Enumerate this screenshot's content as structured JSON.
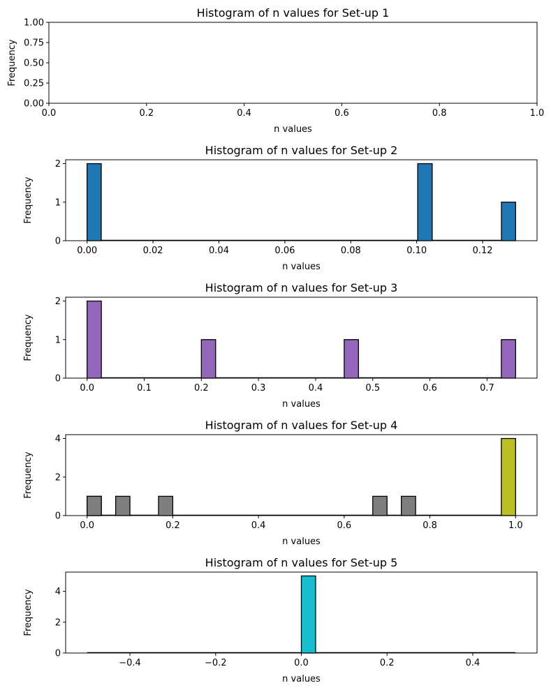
{
  "chart_data": [
    {
      "type": "bar",
      "title": "Histogram of n values for Set-up 1",
      "xlabel": "n values",
      "ylabel": "Frequency",
      "xlim": [
        0,
        1
      ],
      "ylim": [
        0,
        1
      ],
      "xticks": [
        0,
        0.2,
        0.4,
        0.6,
        0.8,
        1.0
      ],
      "xtick_labels": [
        "0.0",
        "0.2",
        "0.4",
        "0.6",
        "0.8",
        "1.0"
      ],
      "yticks": [
        0,
        0.25,
        0.5,
        0.75,
        1.0
      ],
      "ytick_labels": [
        "0.00",
        "0.25",
        "0.50",
        "0.75",
        "1.00"
      ],
      "bars": []
    },
    {
      "type": "bar",
      "title": "Histogram of n values for Set-up 2",
      "xlabel": "n values",
      "ylabel": "Frequency",
      "xlim": [
        -0.0065,
        0.1365
      ],
      "ylim": [
        0,
        2.1
      ],
      "xticks": [
        0,
        0.02,
        0.04,
        0.06,
        0.08,
        0.1,
        0.12
      ],
      "xtick_labels": [
        "0.00",
        "0.02",
        "0.04",
        "0.06",
        "0.08",
        "0.10",
        "0.12"
      ],
      "yticks": [
        0,
        1,
        2
      ],
      "ytick_labels": [
        "0",
        "1",
        "2"
      ],
      "color": "#1f77b4",
      "bars": [
        {
          "x0": 0.0,
          "x1": 0.0043,
          "value": 2
        },
        {
          "x0": 0.1003,
          "x1": 0.1047,
          "value": 2
        },
        {
          "x0": 0.1257,
          "x1": 0.13,
          "value": 1
        }
      ]
    },
    {
      "type": "bar",
      "title": "Histogram of n values for Set-up 3",
      "xlabel": "n values",
      "ylabel": "Frequency",
      "xlim": [
        -0.0375,
        0.7875
      ],
      "ylim": [
        0,
        2.1
      ],
      "xticks": [
        0,
        0.1,
        0.2,
        0.3,
        0.4,
        0.5,
        0.6,
        0.7
      ],
      "xtick_labels": [
        "0.0",
        "0.1",
        "0.2",
        "0.3",
        "0.4",
        "0.5",
        "0.6",
        "0.7"
      ],
      "yticks": [
        0,
        1,
        2
      ],
      "ytick_labels": [
        "0",
        "1",
        "2"
      ],
      "color": "#9467bd",
      "bars": [
        {
          "x0": 0.0,
          "x1": 0.025,
          "value": 2
        },
        {
          "x0": 0.2,
          "x1": 0.225,
          "value": 1
        },
        {
          "x0": 0.45,
          "x1": 0.475,
          "value": 1
        },
        {
          "x0": 0.725,
          "x1": 0.75,
          "value": 1
        }
      ]
    },
    {
      "type": "bar",
      "title": "Histogram of n values for Set-up 4",
      "xlabel": "n values",
      "ylabel": "Frequency",
      "xlim": [
        -0.05,
        1.05
      ],
      "ylim": [
        0,
        4.2
      ],
      "xticks": [
        0,
        0.2,
        0.4,
        0.6,
        0.8,
        1.0
      ],
      "xtick_labels": [
        "0.0",
        "0.2",
        "0.4",
        "0.6",
        "0.8",
        "1.0"
      ],
      "yticks": [
        0,
        2,
        4
      ],
      "ytick_labels": [
        "0",
        "2",
        "4"
      ],
      "bars": [
        {
          "x0": 0.0,
          "x1": 0.0333,
          "value": 1,
          "color": "#bcbd22"
        },
        {
          "x0": 0.0,
          "x1": 0.0333,
          "value": 1,
          "color": "#7f7f7f"
        },
        {
          "x0": 0.0667,
          "x1": 0.1,
          "value": 1,
          "color": "#7f7f7f"
        },
        {
          "x0": 0.1667,
          "x1": 0.2,
          "value": 1,
          "color": "#7f7f7f"
        },
        {
          "x0": 0.6667,
          "x1": 0.7,
          "value": 1,
          "color": "#7f7f7f"
        },
        {
          "x0": 0.7333,
          "x1": 0.7667,
          "value": 1,
          "color": "#7f7f7f"
        },
        {
          "x0": 0.9667,
          "x1": 1.0,
          "value": 4,
          "color": "#bcbd22"
        }
      ]
    },
    {
      "type": "bar",
      "title": "Histogram of n values for Set-up 5",
      "xlabel": "n values",
      "ylabel": "Frequency",
      "xlim": [
        -0.55,
        0.55
      ],
      "ylim": [
        0,
        5.25
      ],
      "xticks": [
        -0.4,
        -0.2,
        0.0,
        0.2,
        0.4
      ],
      "xtick_labels": [
        "−0.4",
        "−0.2",
        "0.0",
        "0.2",
        "0.4"
      ],
      "yticks": [
        0,
        2,
        4
      ],
      "ytick_labels": [
        "0",
        "2",
        "4"
      ],
      "color": "#17becf",
      "baseline_range": [
        -0.5,
        0.5
      ],
      "bars": [
        {
          "x0": 0.0,
          "x1": 0.0333,
          "value": 5
        }
      ]
    }
  ]
}
